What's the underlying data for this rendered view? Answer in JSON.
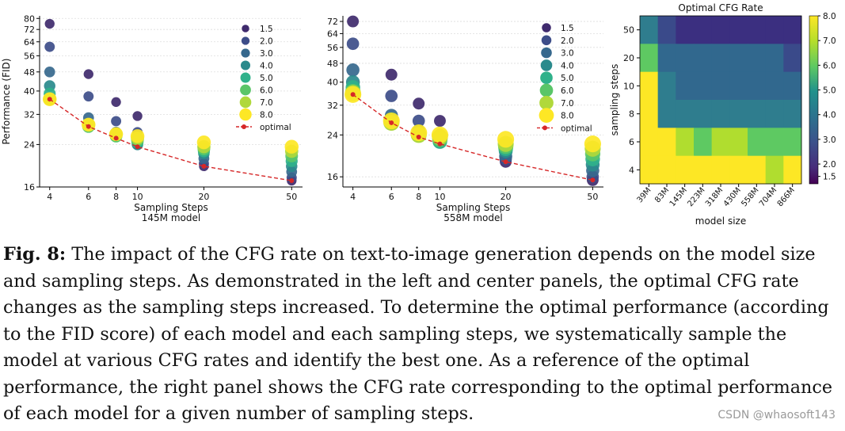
{
  "figure": {
    "label": "Fig. 8:",
    "caption": "The impact of the CFG rate on text-to-image generation depends on the model size and sampling steps. As demonstrated in the left and center panels, the optimal CFG rate changes as the sampling steps increased. To determine the optimal performance (according to the FID score) of each model and each sampling steps, we systematically sample the model at various CFG rates and identify the best one. As a reference of the optimal performance, the right panel shows the CFG rate corresponding to the optimal performance of each model for a given number of sampling steps.",
    "watermark": "CSDN @whaosoft143"
  },
  "colors": {
    "cfg": [
      "#3f2a6d",
      "#3d4d89",
      "#36688d",
      "#2a8a8c",
      "#2fb18a",
      "#5ac568",
      "#b0d83b",
      "#fde725"
    ],
    "optimal": "#d62728",
    "heat_yellow": "#fde725",
    "heat_lime": "#b0dd2f",
    "heat_green": "#5ec962",
    "heat_teal": "#35a48a",
    "heat_blue": "#31688e",
    "heat_purple": "#3b2f80"
  },
  "chart_data": [
    {
      "type": "scatter",
      "xlabel": "Sampling Steps",
      "subtitle": "145M model",
      "ylabel": "Performance (FID)",
      "x_scale": "log",
      "y_scale": "log",
      "x_ticks": [
        4,
        6,
        8,
        10,
        20,
        50
      ],
      "y_ticks": [
        16,
        24,
        32,
        40,
        48,
        56,
        64,
        72,
        80
      ],
      "xlim": [
        3.6,
        56
      ],
      "ylim": [
        16,
        82
      ],
      "legend": [
        "1.5",
        "2.0",
        "3.0",
        "4.0",
        "5.0",
        "6.0",
        "7.0",
        "8.0",
        "optimal"
      ],
      "legend_placement": "upper right",
      "series": [
        {
          "name": "1.5",
          "points": [
            [
              4,
              76
            ],
            [
              6,
              47
            ],
            [
              8,
              36
            ],
            [
              10,
              31.5
            ],
            [
              20,
              19.5
            ],
            [
              50,
              17
            ]
          ]
        },
        {
          "name": "2.0",
          "points": [
            [
              4,
              61
            ],
            [
              6,
              38
            ],
            [
              8,
              30
            ],
            [
              10,
              27
            ],
            [
              20,
              20
            ],
            [
              50,
              17.5
            ]
          ]
        },
        {
          "name": "3.0",
          "points": [
            [
              4,
              48
            ],
            [
              6,
              31
            ],
            [
              8,
              27
            ],
            [
              10,
              24
            ],
            [
              20,
              21
            ],
            [
              50,
              18.5
            ]
          ]
        },
        {
          "name": "4.0",
          "points": [
            [
              4,
              42
            ],
            [
              6,
              29
            ],
            [
              8,
              26
            ],
            [
              10,
              24
            ],
            [
              20,
              22
            ],
            [
              50,
              19.5
            ]
          ]
        },
        {
          "name": "5.0",
          "points": [
            [
              4,
              39
            ],
            [
              6,
              28.5
            ],
            [
              8,
              26
            ],
            [
              10,
              24.5
            ],
            [
              20,
              22.5
            ],
            [
              50,
              20.5
            ]
          ]
        },
        {
          "name": "6.0",
          "points": [
            [
              4,
              37
            ],
            [
              6,
              28.5
            ],
            [
              8,
              26
            ],
            [
              10,
              25
            ],
            [
              20,
              23
            ],
            [
              50,
              21.5
            ]
          ]
        },
        {
          "name": "7.0",
          "points": [
            [
              4,
              37
            ],
            [
              6,
              29
            ],
            [
              8,
              26.5
            ],
            [
              10,
              25.5
            ],
            [
              20,
              23.5
            ],
            [
              50,
              22.5
            ]
          ]
        },
        {
          "name": "8.0",
          "points": [
            [
              4,
              37
            ],
            [
              6,
              29
            ],
            [
              8,
              26.5
            ],
            [
              10,
              26
            ],
            [
              20,
              24.5
            ],
            [
              50,
              23.5
            ]
          ]
        }
      ],
      "optimal": [
        [
          4,
          37
        ],
        [
          6,
          28.5
        ],
        [
          8,
          25.5
        ],
        [
          10,
          23.5
        ],
        [
          20,
          19.5
        ],
        [
          50,
          17
        ]
      ]
    },
    {
      "type": "scatter",
      "xlabel": "Sampling Steps",
      "subtitle": "558M model",
      "ylabel": "",
      "x_scale": "log",
      "y_scale": "log",
      "x_ticks": [
        4,
        6,
        8,
        10,
        20,
        50
      ],
      "y_ticks": [
        16,
        24,
        32,
        40,
        48,
        56,
        64,
        72
      ],
      "xlim": [
        3.6,
        56
      ],
      "ylim": [
        14.5,
        76
      ],
      "legend": [
        "1.5",
        "2.0",
        "3.0",
        "4.0",
        "5.0",
        "6.0",
        "7.0",
        "8.0",
        "optimal"
      ],
      "legend_placement": "upper right",
      "series": [
        {
          "name": "1.5",
          "points": [
            [
              4,
              72
            ],
            [
              6,
              43
            ],
            [
              8,
              32.5
            ],
            [
              10,
              27.5
            ],
            [
              20,
              18.5
            ],
            [
              50,
              15.5
            ]
          ]
        },
        {
          "name": "2.0",
          "points": [
            [
              4,
              58
            ],
            [
              6,
              35
            ],
            [
              8,
              27.5
            ],
            [
              10,
              24
            ],
            [
              20,
              19
            ],
            [
              50,
              16
            ]
          ]
        },
        {
          "name": "3.0",
          "points": [
            [
              4,
              45
            ],
            [
              6,
              29
            ],
            [
              8,
              25
            ],
            [
              10,
              23
            ],
            [
              20,
              19.5
            ],
            [
              50,
              17
            ]
          ]
        },
        {
          "name": "4.0",
          "points": [
            [
              4,
              40
            ],
            [
              6,
              28
            ],
            [
              8,
              24.5
            ],
            [
              10,
              22.5
            ],
            [
              20,
              20.5
            ],
            [
              50,
              18
            ]
          ]
        },
        {
          "name": "5.0",
          "points": [
            [
              4,
              38
            ],
            [
              6,
              27
            ],
            [
              8,
              24
            ],
            [
              10,
              22.5
            ],
            [
              20,
              21
            ],
            [
              50,
              19
            ]
          ]
        },
        {
          "name": "6.0",
          "points": [
            [
              4,
              36.5
            ],
            [
              6,
              27
            ],
            [
              8,
              24
            ],
            [
              10,
              23
            ],
            [
              20,
              21.5
            ],
            [
              50,
              20
            ]
          ]
        },
        {
          "name": "7.0",
          "points": [
            [
              4,
              36
            ],
            [
              6,
              27
            ],
            [
              8,
              24
            ],
            [
              10,
              23.5
            ],
            [
              20,
              22
            ],
            [
              50,
              21
            ]
          ]
        },
        {
          "name": "8.0",
          "points": [
            [
              4,
              35.5
            ],
            [
              6,
              27.5
            ],
            [
              8,
              24.5
            ],
            [
              10,
              24
            ],
            [
              20,
              23
            ],
            [
              50,
              22
            ]
          ]
        }
      ],
      "optimal": [
        [
          4,
          35.5
        ],
        [
          6,
          27
        ],
        [
          8,
          23.5
        ],
        [
          10,
          22
        ],
        [
          20,
          18.5
        ],
        [
          50,
          15.5
        ]
      ]
    },
    {
      "type": "heatmap",
      "title": "Optimal CFG Rate",
      "xlabel": "model size",
      "ylabel": "sampling steps",
      "x_categories": [
        "39M",
        "83M",
        "145M",
        "223M",
        "318M",
        "430M",
        "558M",
        "704M",
        "866M"
      ],
      "y_categories": [
        "50",
        "20",
        "10",
        "8",
        "6",
        "4"
      ],
      "values": [
        [
          4.0,
          2.0,
          1.5,
          1.5,
          1.5,
          1.5,
          1.5,
          1.5,
          1.5
        ],
        [
          6.0,
          3.0,
          3.0,
          3.0,
          3.0,
          3.0,
          3.0,
          3.0,
          2.0
        ],
        [
          8.0,
          4.0,
          3.0,
          3.0,
          3.0,
          3.0,
          3.0,
          3.0,
          3.0
        ],
        [
          8.0,
          4.0,
          4.0,
          4.0,
          4.0,
          4.0,
          4.0,
          4.0,
          4.0
        ],
        [
          8.0,
          8.0,
          7.0,
          6.0,
          7.0,
          7.0,
          6.0,
          6.0,
          6.0
        ],
        [
          8.0,
          8.0,
          8.0,
          8.0,
          8.0,
          8.0,
          8.0,
          7.0,
          8.0
        ]
      ],
      "colorbar_ticks": [
        "8.0",
        "7.0",
        "6.0",
        "5.0",
        "4.0",
        "3.0",
        "2.0",
        "1.5"
      ],
      "colorbar_range": [
        1.2,
        8.0
      ]
    }
  ]
}
